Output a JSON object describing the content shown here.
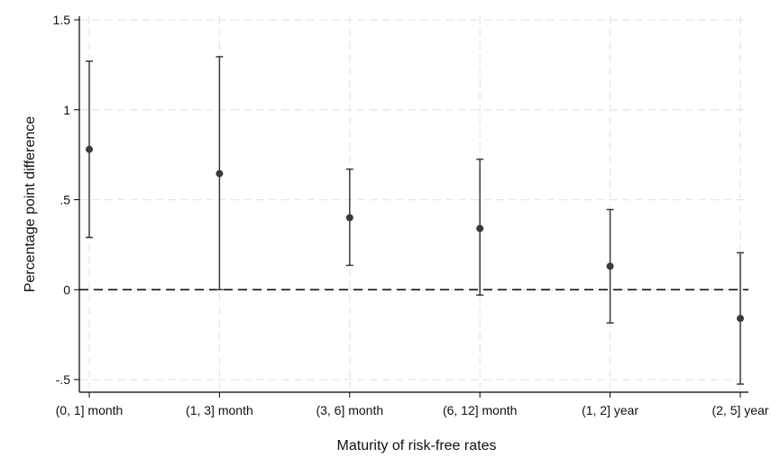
{
  "chart_data": {
    "type": "scatter",
    "title": "",
    "xlabel": "Maturity of risk-free rates",
    "ylabel": "Percentage point difference",
    "categories": [
      "(0, 1] month",
      "(1, 3] month",
      "(3, 6] month",
      "(6, 12] month",
      "(1, 2] year",
      "(2, 5] year"
    ],
    "values": [
      0.78,
      0.645,
      0.4,
      0.34,
      0.13,
      -0.16
    ],
    "ci_low": [
      0.29,
      0.0,
      0.135,
      -0.03,
      -0.185,
      -0.525
    ],
    "ci_high": [
      1.27,
      1.295,
      0.67,
      0.725,
      0.445,
      0.205
    ],
    "ylim": [
      -0.57,
      1.52
    ],
    "yticks": [
      -0.5,
      0,
      0.5,
      1,
      1.5
    ],
    "ytick_labels": [
      "-.5",
      "0",
      ".5",
      "1",
      "1.5"
    ],
    "reference_line": 0,
    "grid": true,
    "legend": "none",
    "colors": {
      "marker": "#3a3a3a",
      "errorbar": "#3a3a3a",
      "grid": "#e6e6e6",
      "reference": "#111111",
      "axis": "#000000"
    }
  }
}
